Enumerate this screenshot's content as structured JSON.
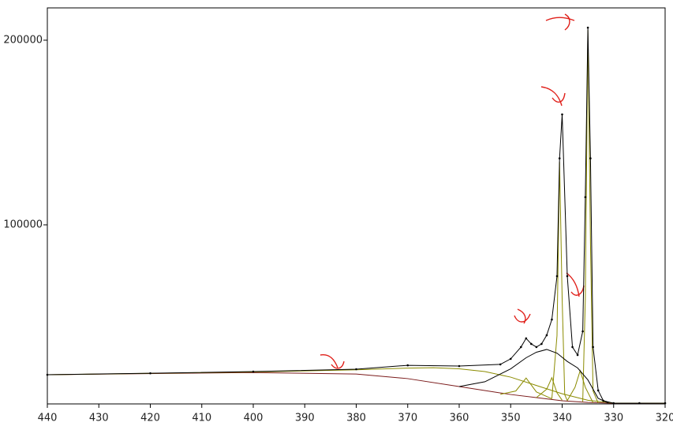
{
  "chart_data": {
    "type": "line",
    "xlim": [
      440,
      320
    ],
    "ylim": [
      3000,
      217500
    ],
    "xticks": [
      440,
      430,
      420,
      410,
      400,
      390,
      380,
      370,
      360,
      350,
      340,
      330,
      320
    ],
    "yticks": [
      100000,
      200000
    ],
    "series": [
      {
        "color": "#7a1a1a",
        "x": [
          440,
          400,
          380,
          370,
          360,
          350,
          345,
          340,
          335,
          330,
          320
        ],
        "values": [
          18800,
          20000,
          19200,
          16700,
          12400,
          8100,
          6400,
          4700,
          3800,
          3400,
          3400
        ]
      },
      {
        "color": "#8b8b00",
        "x": [
          440,
          400,
          380,
          370,
          365,
          360,
          355,
          350,
          345,
          340,
          335,
          330,
          320
        ],
        "values": [
          18800,
          20300,
          21500,
          22400,
          22600,
          22000,
          20500,
          17500,
          13000,
          8500,
          5000,
          3500,
          3400
        ]
      },
      {
        "color": "#8b8b00",
        "x": [
          352,
          349,
          347,
          345,
          342
        ],
        "values": [
          8200,
          10000,
          17000,
          9500,
          5800
        ]
      },
      {
        "color": "#8b8b00",
        "x": [
          345,
          343,
          342,
          341,
          340
        ],
        "values": [
          6400,
          11000,
          17200,
          9000,
          5000
        ]
      },
      {
        "color": "#8b8b00",
        "x": [
          342,
          341,
          340.5,
          340,
          339.5,
          339
        ],
        "values": [
          5800,
          40000,
          134000,
          60000,
          8000,
          4800
        ]
      },
      {
        "color": "#8b8b00",
        "x": [
          339,
          337.5,
          336.5,
          335.5,
          334
        ],
        "values": [
          4800,
          12000,
          21000,
          12000,
          3700
        ]
      },
      {
        "color": "#8b8b00",
        "x": [
          336,
          335.5,
          335,
          334.5,
          334,
          333
        ],
        "values": [
          4200,
          60000,
          205500,
          90000,
          10000,
          3500
        ]
      },
      {
        "color": "#000000",
        "x": [
          360,
          355,
          350,
          347,
          345,
          343,
          341,
          339,
          337,
          335,
          333,
          331
        ],
        "values": [
          12400,
          15000,
          22000,
          28000,
          31000,
          32500,
          30500,
          26000,
          22500,
          16000,
          6000,
          3500
        ]
      },
      {
        "color": "#000000",
        "markers": true,
        "x": [
          440,
          420,
          400,
          380,
          370,
          360,
          352,
          350,
          348,
          347,
          346,
          345,
          344,
          343,
          342,
          341,
          340.5,
          340,
          339,
          338,
          337,
          336,
          335.5,
          335,
          334.5,
          334,
          333,
          332,
          330,
          325,
          320
        ],
        "values": [
          18800,
          19600,
          20500,
          21800,
          23900,
          23500,
          24400,
          27400,
          33800,
          38500,
          35500,
          33800,
          35500,
          40200,
          48700,
          72200,
          136000,
          159800,
          72200,
          33800,
          29500,
          42300,
          115000,
          206800,
          136000,
          33800,
          10300,
          4700,
          3400,
          3400,
          3400
        ]
      }
    ]
  }
}
